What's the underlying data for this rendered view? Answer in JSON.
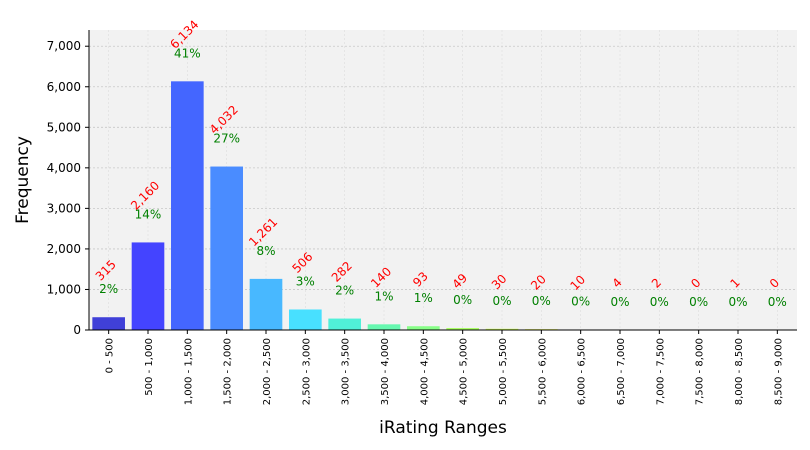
{
  "chart_data": {
    "type": "bar",
    "title": "",
    "xlabel": "iRating Ranges",
    "ylabel": "Frequency",
    "ylim": [
      0,
      7400
    ],
    "yticks": [
      0,
      1000,
      2000,
      3000,
      4000,
      5000,
      6000,
      7000
    ],
    "ytick_labels": [
      "0",
      "1,000",
      "2,000",
      "3,000",
      "4,000",
      "5,000",
      "6,000",
      "7,000"
    ],
    "grid": true,
    "categories": [
      "0 - 500",
      "500 - 1,000",
      "1,000 - 1,500",
      "1,500 - 2,000",
      "2,000 - 2,500",
      "2,500 - 3,000",
      "3,000 - 3,500",
      "3,500 - 4,000",
      "4,000 - 4,500",
      "4,500 - 5,000",
      "5,000 - 5,500",
      "5,500 - 6,000",
      "6,000 - 6,500",
      "6,500 - 7,000",
      "7,000 - 7,500",
      "7,500 - 8,000",
      "8,000 - 8,500",
      "8,500 - 9,000"
    ],
    "values": [
      315,
      2160,
      6134,
      4032,
      1261,
      506,
      282,
      140,
      93,
      49,
      30,
      20,
      10,
      4,
      2,
      0,
      1,
      0
    ],
    "count_labels": [
      "315",
      "2,160",
      "6,134",
      "4,032",
      "1,261",
      "506",
      "282",
      "140",
      "93",
      "49",
      "30",
      "20",
      "10",
      "4",
      "2",
      "0",
      "1",
      "0"
    ],
    "percent_labels": [
      "2%",
      "14%",
      "41%",
      "27%",
      "8%",
      "3%",
      "2%",
      "1%",
      "1%",
      "0%",
      "0%",
      "0%",
      "0%",
      "0%",
      "0%",
      "0%",
      "0%",
      "0%"
    ],
    "colors": [
      "#4040d8",
      "#4444ff",
      "#4466ff",
      "#4a8cff",
      "#48b8ff",
      "#48e0ff",
      "#50f0d8",
      "#66f8b0",
      "#88ff88",
      "#aaff66",
      "#ccff55",
      "#eeff44",
      "#ffee33",
      "#ffcc22",
      "#ffaa11",
      "#ff8800",
      "#ff6600",
      "#ff4400"
    ],
    "count_label_color": "#ff0000",
    "percent_label_color": "#008000",
    "plot_background": "#f2f2f2"
  }
}
